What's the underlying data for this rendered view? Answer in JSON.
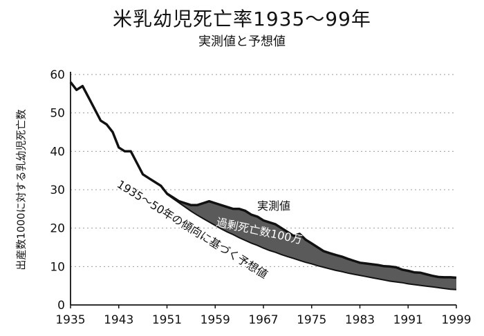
{
  "chart_data": {
    "type": "area",
    "title": "米乳幼児死亡率1935～99年",
    "subtitle": "実測値と予想値",
    "xlabel": "",
    "ylabel": "出産数1000に対する乳幼児死亡数",
    "xlim": [
      1935,
      1999
    ],
    "ylim": [
      0,
      60
    ],
    "x_ticks": [
      "1935",
      "1943",
      "1951",
      "1959",
      "1967",
      "1975",
      "1983",
      "1991",
      "1999"
    ],
    "y_ticks": [
      "0",
      "10",
      "20",
      "30",
      "40",
      "50",
      "60"
    ],
    "grid": true,
    "legend": "none",
    "series": [
      {
        "name": "実測値",
        "x": [
          1935,
          1936,
          1937,
          1938,
          1939,
          1940,
          1941,
          1942,
          1943,
          1944,
          1945,
          1946,
          1947,
          1948,
          1949,
          1950,
          1951,
          1952,
          1953,
          1954,
          1955,
          1956,
          1957,
          1958,
          1959,
          1960,
          1961,
          1962,
          1963,
          1964,
          1965,
          1966,
          1967,
          1968,
          1969,
          1970,
          1971,
          1972,
          1973,
          1974,
          1975,
          1976,
          1977,
          1978,
          1979,
          1980,
          1981,
          1982,
          1983,
          1984,
          1985,
          1986,
          1987,
          1988,
          1989,
          1990,
          1991,
          1992,
          1993,
          1994,
          1995,
          1996,
          1997,
          1998,
          1999
        ],
        "values": [
          58,
          56,
          57,
          54,
          51,
          48,
          47,
          45,
          41,
          40,
          40,
          37,
          34,
          33,
          32,
          31,
          29,
          28,
          27,
          26.5,
          26,
          26,
          26.5,
          27,
          26.5,
          26,
          25.5,
          25,
          25,
          24.5,
          23.5,
          23,
          22,
          21.5,
          21,
          20,
          19,
          18,
          18.5,
          17,
          16,
          15,
          14,
          13.5,
          13,
          12.6,
          12,
          11.5,
          11,
          10.8,
          10.6,
          10.4,
          10.1,
          10,
          9.8,
          9.2,
          8.9,
          8.5,
          8.4,
          8,
          7.6,
          7.3,
          7.2,
          7.2,
          7.1
        ]
      },
      {
        "name": "1935～50年の傾向に基づく予想値",
        "x": [
          1935,
          1936,
          1937,
          1938,
          1939,
          1940,
          1941,
          1942,
          1943,
          1944,
          1945,
          1946,
          1947,
          1948,
          1949,
          1950,
          1951,
          1952,
          1953,
          1954,
          1955,
          1956,
          1957,
          1958,
          1959,
          1960,
          1961,
          1962,
          1963,
          1964,
          1965,
          1966,
          1967,
          1968,
          1969,
          1970,
          1971,
          1972,
          1973,
          1974,
          1975,
          1976,
          1977,
          1978,
          1979,
          1980,
          1981,
          1982,
          1983,
          1984,
          1985,
          1986,
          1987,
          1988,
          1989,
          1990,
          1991,
          1992,
          1993,
          1994,
          1995,
          1996,
          1997,
          1998,
          1999
        ],
        "values": [
          58,
          56,
          57,
          54,
          51,
          48,
          47,
          45,
          41,
          40,
          40,
          37,
          34,
          33,
          32,
          31,
          28.8,
          27.7,
          26.6,
          25.5,
          24.4,
          23.4,
          22.5,
          21.6,
          20.7,
          19.8,
          19,
          18.3,
          17.5,
          16.8,
          16.1,
          15.5,
          14.8,
          14.2,
          13.7,
          13.1,
          12.6,
          12.1,
          11.6,
          11.1,
          10.7,
          10.2,
          9.8,
          9.4,
          9,
          8.7,
          8.3,
          8,
          7.7,
          7.4,
          7.1,
          6.8,
          6.5,
          6.2,
          6,
          5.8,
          5.5,
          5.3,
          5.1,
          4.9,
          4.7,
          4.5,
          4.3,
          4.1,
          4
        ]
      }
    ],
    "annotations": {
      "actual_label": "実測値",
      "excess_label": "過剰死亡数100万",
      "trend_label": "1935～50年の傾向に基づく予想値"
    },
    "colors": {
      "line": "#111111",
      "excess_fill": "#5a5a5a",
      "grid": "#9a9a9a"
    }
  }
}
